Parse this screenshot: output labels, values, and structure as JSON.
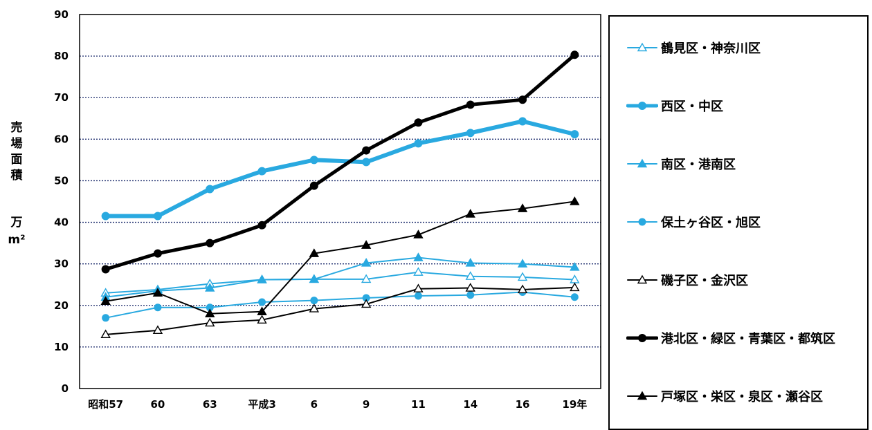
{
  "chart_data": {
    "type": "line",
    "ylabel": "売場面積",
    "yunit_line1": "万",
    "yunit_line2": "m²",
    "ylim": [
      0,
      90
    ],
    "yticks": [
      0,
      10,
      20,
      30,
      40,
      50,
      60,
      70,
      80,
      90
    ],
    "grid": true,
    "legend_placement": "right",
    "categories": [
      "昭和57",
      "60",
      "63",
      "平成3",
      "6",
      "9",
      "11",
      "14",
      "16",
      "19年"
    ],
    "series": [
      {
        "name": "鶴見区・神奈川区",
        "color": "#29a9e0",
        "width": 2,
        "marker": "triangle-open",
        "values": [
          23,
          23.8,
          25.2,
          26.2,
          26.3,
          26.3,
          28,
          27,
          26.8,
          26.2
        ]
      },
      {
        "name": "西区・中区",
        "color": "#29a9e0",
        "width": 6,
        "marker": "circle-filled",
        "values": [
          41.5,
          41.5,
          48,
          52.3,
          55,
          54.5,
          59,
          61.5,
          64.3,
          61.2
        ]
      },
      {
        "name": "南区・港南区",
        "color": "#29a9e0",
        "width": 2,
        "marker": "triangle-filled",
        "values": [
          22,
          23.5,
          24.2,
          26.2,
          26.3,
          30.2,
          31.5,
          30.2,
          30,
          29.2
        ]
      },
      {
        "name": "保土ヶ谷区・旭区",
        "color": "#29a9e0",
        "width": 2,
        "marker": "circle-filled",
        "values": [
          17,
          19.5,
          19.5,
          20.8,
          21.2,
          21.8,
          22.3,
          22.5,
          23.2,
          22
        ]
      },
      {
        "name": "磯子区・金沢区",
        "color": "#000000",
        "width": 2,
        "marker": "triangle-open",
        "values": [
          13,
          14,
          15.8,
          16.5,
          19.2,
          20.3,
          24,
          24.2,
          23.8,
          24.3
        ]
      },
      {
        "name": "港北区・緑区・青葉区・都筑区",
        "color": "#000000",
        "width": 5,
        "marker": "circle-filled",
        "values": [
          28.7,
          32.5,
          35,
          39.3,
          48.8,
          57.3,
          64,
          68.3,
          69.5,
          80.3
        ]
      },
      {
        "name": "戸塚区・栄区・泉区・瀬谷区",
        "color": "#000000",
        "width": 2,
        "marker": "triangle-filled",
        "values": [
          21,
          23,
          18,
          18.5,
          32.5,
          34.5,
          37,
          42,
          43.3,
          45
        ]
      }
    ]
  }
}
